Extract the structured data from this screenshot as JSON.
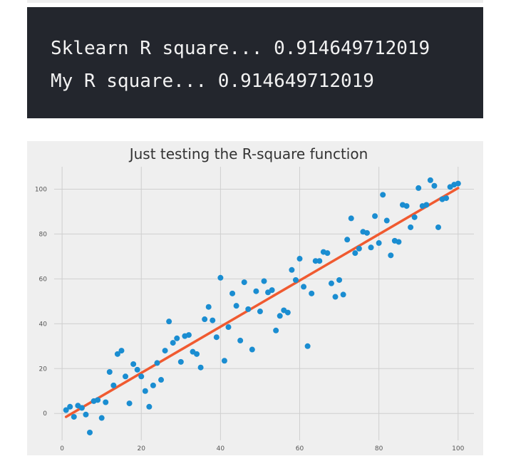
{
  "console": {
    "lines": [
      "Sklearn R square... 0.914649712019",
      "My R square... 0.914649712019"
    ]
  },
  "colors": {
    "console_bg": "#23262d",
    "console_text": "#f2f2f2",
    "plot_bg": "#efefef",
    "grid": "#cfcfcf",
    "points": "#1a8dd1",
    "fit_line": "#f05a30"
  },
  "chart_data": {
    "type": "scatter",
    "title": "Just testing the R-square function",
    "xlabel": "",
    "ylabel": "",
    "xlim": [
      -2,
      104
    ],
    "ylim": [
      -12,
      110
    ],
    "xticks": [
      0,
      20,
      40,
      60,
      80,
      100
    ],
    "yticks": [
      0,
      20,
      40,
      60,
      80,
      100
    ],
    "grid": true,
    "points": [
      [
        1,
        1.5
      ],
      [
        2,
        3
      ],
      [
        3,
        -1.5
      ],
      [
        4,
        3.5
      ],
      [
        5,
        2.5
      ],
      [
        6,
        -0.5
      ],
      [
        7,
        -8.5
      ],
      [
        8,
        5.5
      ],
      [
        9,
        6
      ],
      [
        10,
        -2
      ],
      [
        11,
        5
      ],
      [
        12,
        18.5
      ],
      [
        13,
        12.5
      ],
      [
        14,
        26.5
      ],
      [
        15,
        28
      ],
      [
        16,
        16.5
      ],
      [
        17,
        4.5
      ],
      [
        18,
        22
      ],
      [
        19,
        19.5
      ],
      [
        20,
        16.5
      ],
      [
        21,
        10
      ],
      [
        22,
        3
      ],
      [
        23,
        12.5
      ],
      [
        24,
        22.5
      ],
      [
        25,
        15
      ],
      [
        26,
        28
      ],
      [
        27,
        41
      ],
      [
        28,
        31.5
      ],
      [
        29,
        33.5
      ],
      [
        30,
        23
      ],
      [
        31,
        34.5
      ],
      [
        32,
        35
      ],
      [
        33,
        27.5
      ],
      [
        34,
        26.5
      ],
      [
        35,
        20.5
      ],
      [
        36,
        42
      ],
      [
        37,
        47.5
      ],
      [
        38,
        41.5
      ],
      [
        39,
        34
      ],
      [
        40,
        60.5
      ],
      [
        41,
        23.5
      ],
      [
        42,
        38.5
      ],
      [
        43,
        53.5
      ],
      [
        44,
        48
      ],
      [
        45,
        32.5
      ],
      [
        46,
        58.5
      ],
      [
        47,
        46.5
      ],
      [
        48,
        28.5
      ],
      [
        49,
        54.5
      ],
      [
        50,
        45.5
      ],
      [
        51,
        59
      ],
      [
        52,
        54
      ],
      [
        53,
        55
      ],
      [
        54,
        37
      ],
      [
        55,
        43.5
      ],
      [
        56,
        46
      ],
      [
        57,
        45
      ],
      [
        58,
        64
      ],
      [
        59,
        59.5
      ],
      [
        60,
        69
      ],
      [
        61,
        56.5
      ],
      [
        62,
        30
      ],
      [
        63,
        53.5
      ],
      [
        64,
        68
      ],
      [
        65,
        68
      ],
      [
        66,
        72
      ],
      [
        67,
        71.5
      ],
      [
        68,
        58
      ],
      [
        69,
        52
      ],
      [
        70,
        59.5
      ],
      [
        71,
        53
      ],
      [
        72,
        77.5
      ],
      [
        73,
        87
      ],
      [
        74,
        71.5
      ],
      [
        75,
        73.5
      ],
      [
        76,
        81
      ],
      [
        77,
        80.5
      ],
      [
        78,
        74
      ],
      [
        79,
        88
      ],
      [
        80,
        76
      ],
      [
        81,
        97.5
      ],
      [
        82,
        86
      ],
      [
        83,
        70.5
      ],
      [
        84,
        77
      ],
      [
        85,
        76.5
      ],
      [
        86,
        93
      ],
      [
        87,
        92.5
      ],
      [
        88,
        83
      ],
      [
        89,
        87.5
      ],
      [
        90,
        100.5
      ],
      [
        91,
        92.5
      ],
      [
        92,
        93
      ],
      [
        93,
        104
      ],
      [
        94,
        101.5
      ],
      [
        95,
        83
      ],
      [
        96,
        95.5
      ],
      [
        97,
        96
      ],
      [
        98,
        101
      ],
      [
        99,
        102
      ],
      [
        100,
        102.5
      ]
    ],
    "fit_line": {
      "x": [
        1,
        100
      ],
      "y": [
        -1.5,
        100.5
      ]
    }
  }
}
